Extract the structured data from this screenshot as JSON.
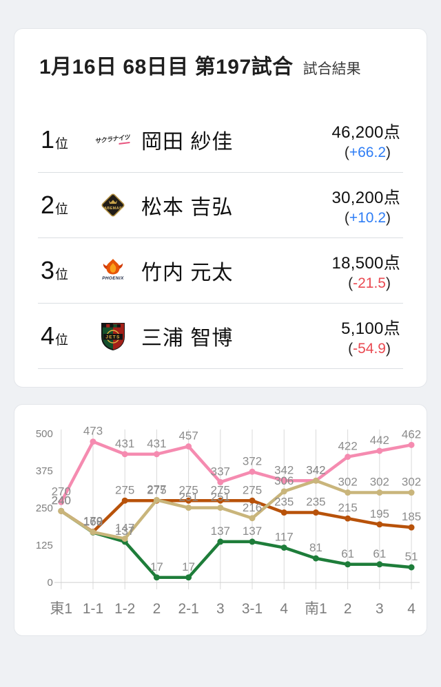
{
  "header": {
    "title": "1月16日  68日目  第197試合",
    "subtitle": "試合結果"
  },
  "results": {
    "rank_suffix": "位",
    "paren_open": "(",
    "paren_close": ")",
    "score_suffix_note": "点",
    "players": [
      {
        "rank": "1",
        "team": "sakura-knights",
        "team_label": "サクラナイツ",
        "name": "岡田 紗佳",
        "score": "46,200点",
        "change": "+66.2",
        "change_color": "blue"
      },
      {
        "rank": "2",
        "team": "abemas",
        "team_label": "ABEMAS",
        "name": "松本 吉弘",
        "score": "30,200点",
        "change": "+10.2",
        "change_color": "blue"
      },
      {
        "rank": "3",
        "team": "phoenix",
        "team_label": "PHOENIX",
        "name": "竹内 元太",
        "score": "18,500点",
        "change": "-21.5",
        "change_color": "red"
      },
      {
        "rank": "4",
        "team": "jets",
        "team_label": "JETS",
        "name": "三浦 智博",
        "score": "5,100点",
        "change": "-54.9",
        "change_color": "red"
      }
    ]
  },
  "colors": {
    "blue": "#2e7df5",
    "red": "#ea4a52",
    "grid": "#d9d9d9",
    "axis": "#cfcfcf",
    "tick_text": "#7d7d7d",
    "label_text": "#8b8b8b"
  },
  "chart_data": {
    "type": "line",
    "categories": [
      "東1",
      "1-1",
      "1-2",
      "2",
      "2-1",
      "3",
      "3-1",
      "4",
      "南1",
      "2",
      "3",
      "4"
    ],
    "series": [
      {
        "name": "岡田 紗佳",
        "color": "#f58bb0",
        "values": [
          270,
          473,
          431,
          431,
          457,
          337,
          372,
          342,
          342,
          422,
          442,
          462
        ]
      },
      {
        "name": "松本 吉弘",
        "color": "#c9b57b",
        "values": [
          240,
          169,
          147,
          277,
          251,
          251,
          216,
          306,
          342,
          302,
          302,
          302
        ]
      },
      {
        "name": "竹内 元太",
        "color": "#b8520a",
        "values": [
          240,
          170,
          275,
          275,
          275,
          275,
          275,
          235,
          235,
          215,
          195,
          185
        ]
      },
      {
        "name": "三浦 智博",
        "color": "#1e7d3a",
        "values": [
          240,
          168,
          137,
          17,
          17,
          137,
          137,
          117,
          81,
          61,
          61,
          51
        ]
      }
    ],
    "ylim": [
      0,
      500
    ],
    "yticks": [
      0,
      125,
      250,
      375,
      500
    ],
    "grid": "vertical-only",
    "legend": "none",
    "point_labels": true,
    "draw_order": [
      3,
      2,
      0,
      1
    ]
  }
}
